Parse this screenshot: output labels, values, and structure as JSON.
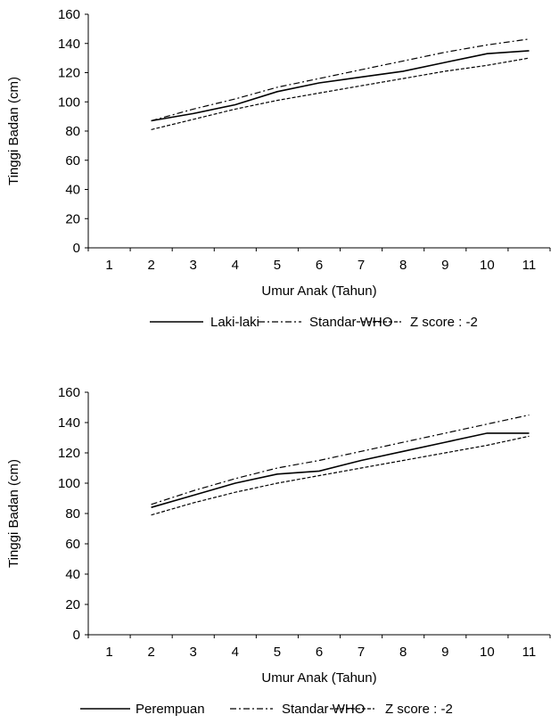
{
  "chart_data": [
    {
      "type": "line",
      "xlabel": "Umur Anak (Tahun)",
      "ylabel": "Tinggi Badan (cm)",
      "x_ticks": [
        "1",
        "2",
        "3",
        "4",
        "5",
        "6",
        "7",
        "8",
        "9",
        "10",
        "11"
      ],
      "y_ticks": [
        "0",
        "20",
        "40",
        "60",
        "80",
        "100",
        "120",
        "140",
        "160"
      ],
      "xlim": [
        1,
        11
      ],
      "ylim": [
        0,
        160
      ],
      "grid": false,
      "legend_position": "bottom",
      "x": [
        2,
        3,
        4,
        5,
        6,
        7,
        8,
        9,
        10,
        11
      ],
      "series": [
        {
          "name": "Laki-laki",
          "style": "solid",
          "values": [
            87,
            92,
            98,
            107,
            113,
            117,
            121,
            127,
            133,
            135
          ]
        },
        {
          "name": "Standar WHO",
          "style": "dash-dot",
          "values": [
            87,
            95,
            102,
            110,
            116,
            122,
            128,
            134,
            139,
            143
          ]
        },
        {
          "name": "Z score : -2",
          "style": "dashed",
          "values": [
            81,
            88,
            95,
            101,
            106,
            111,
            116,
            121,
            125,
            130
          ]
        }
      ]
    },
    {
      "type": "line",
      "xlabel": "Umur Anak (Tahun)",
      "ylabel": "Tinggi Badan (cm)",
      "x_ticks": [
        "1",
        "2",
        "3",
        "4",
        "5",
        "6",
        "7",
        "8",
        "9",
        "10",
        "11"
      ],
      "y_ticks": [
        "0",
        "20",
        "40",
        "60",
        "80",
        "100",
        "120",
        "140",
        "160"
      ],
      "xlim": [
        1,
        11
      ],
      "ylim": [
        0,
        160
      ],
      "grid": false,
      "legend_position": "bottom",
      "x": [
        2,
        3,
        4,
        5,
        6,
        7,
        8,
        9,
        10,
        11
      ],
      "series": [
        {
          "name": "Perempuan",
          "style": "solid",
          "values": [
            84,
            92,
            100,
            106,
            108,
            115,
            121,
            127,
            133,
            133
          ]
        },
        {
          "name": "Standar WHO",
          "style": "dash-dot",
          "values": [
            86,
            95,
            103,
            110,
            115,
            121,
            127,
            133,
            139,
            145
          ]
        },
        {
          "name": "Z score : -2",
          "style": "dashed",
          "values": [
            79,
            87,
            94,
            100,
            105,
            110,
            115,
            120,
            125,
            131
          ]
        }
      ]
    }
  ]
}
